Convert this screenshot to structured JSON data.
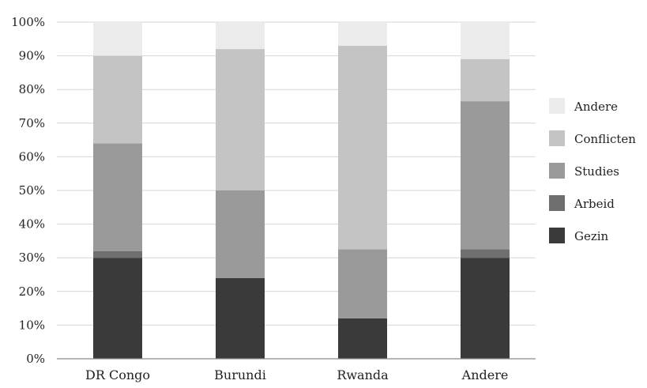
{
  "chart_data": {
    "type": "bar",
    "stacked": true,
    "percent": true,
    "categories": [
      "DR Congo",
      "Burundi",
      "Rwanda",
      "Andere"
    ],
    "series": [
      {
        "name": "Gezin",
        "color": "#3a3a3a",
        "values": [
          30,
          24,
          12,
          30
        ]
      },
      {
        "name": "Arbeid",
        "color": "#6f6f6f",
        "values": [
          2,
          0,
          0,
          2.5
        ]
      },
      {
        "name": "Studies",
        "color": "#9a9a9a",
        "values": [
          32,
          26,
          20.5,
          44
        ]
      },
      {
        "name": "Conflicten",
        "color": "#c4c4c4",
        "values": [
          26,
          42,
          60.5,
          12.5
        ]
      },
      {
        "name": "Andere",
        "color": "#ebebeb",
        "values": [
          10,
          8,
          7,
          11
        ]
      }
    ],
    "ylim": [
      0,
      100
    ],
    "yticks": [
      "0%",
      "10%",
      "20%",
      "30%",
      "40%",
      "50%",
      "60%",
      "70%",
      "80%",
      "90%",
      "100%"
    ],
    "legend_order": [
      "Andere",
      "Conflicten",
      "Studies",
      "Arbeid",
      "Gezin"
    ],
    "legend_position": "right",
    "grid": true,
    "title": "",
    "xlabel": "",
    "ylabel": ""
  }
}
